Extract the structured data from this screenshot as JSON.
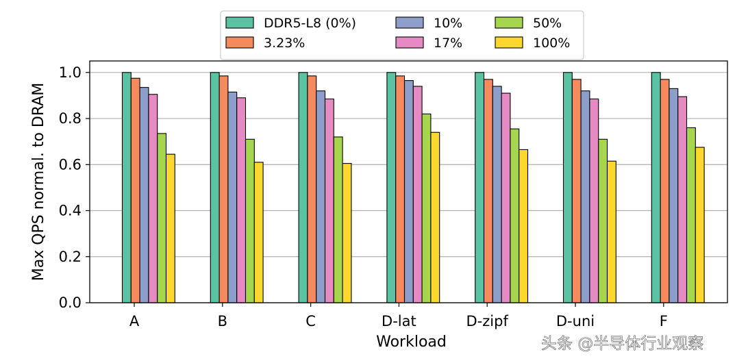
{
  "chart_data": {
    "type": "bar",
    "title": "",
    "xlabel": "Workload",
    "ylabel": "Max QPS normal. to DRAM",
    "ylim": [
      0,
      1.05
    ],
    "yticks": [
      "0.0",
      "0.2",
      "0.4",
      "0.6",
      "0.8",
      "1.0"
    ],
    "grid": "y",
    "legend_position": "top-center",
    "categories": [
      "A",
      "B",
      "C",
      "D-lat",
      "D-zipf",
      "D-uni",
      "F"
    ],
    "series": [
      {
        "name": "DDR5-L8 (0%)",
        "color": "#5bc2a4",
        "values": [
          1.0,
          1.0,
          1.0,
          1.0,
          1.0,
          1.0,
          1.0
        ]
      },
      {
        "name": "3.23%",
        "color": "#f58a5f",
        "values": [
          0.975,
          0.985,
          0.985,
          0.985,
          0.97,
          0.97,
          0.97
        ]
      },
      {
        "name": "10%",
        "color": "#8e9ecb",
        "values": [
          0.935,
          0.915,
          0.92,
          0.965,
          0.94,
          0.92,
          0.93
        ]
      },
      {
        "name": "17%",
        "color": "#e58ac3",
        "values": [
          0.905,
          0.89,
          0.885,
          0.94,
          0.91,
          0.885,
          0.895
        ]
      },
      {
        "name": "50%",
        "color": "#a6d64e",
        "values": [
          0.735,
          0.71,
          0.72,
          0.82,
          0.755,
          0.71,
          0.76
        ]
      },
      {
        "name": "100%",
        "color": "#fcd82e",
        "values": [
          0.645,
          0.61,
          0.605,
          0.74,
          0.665,
          0.615,
          0.675
        ]
      }
    ]
  },
  "watermark": {
    "faint_text": "半导体行业观察",
    "bottom_text": "头条 @半导体行业观察"
  }
}
